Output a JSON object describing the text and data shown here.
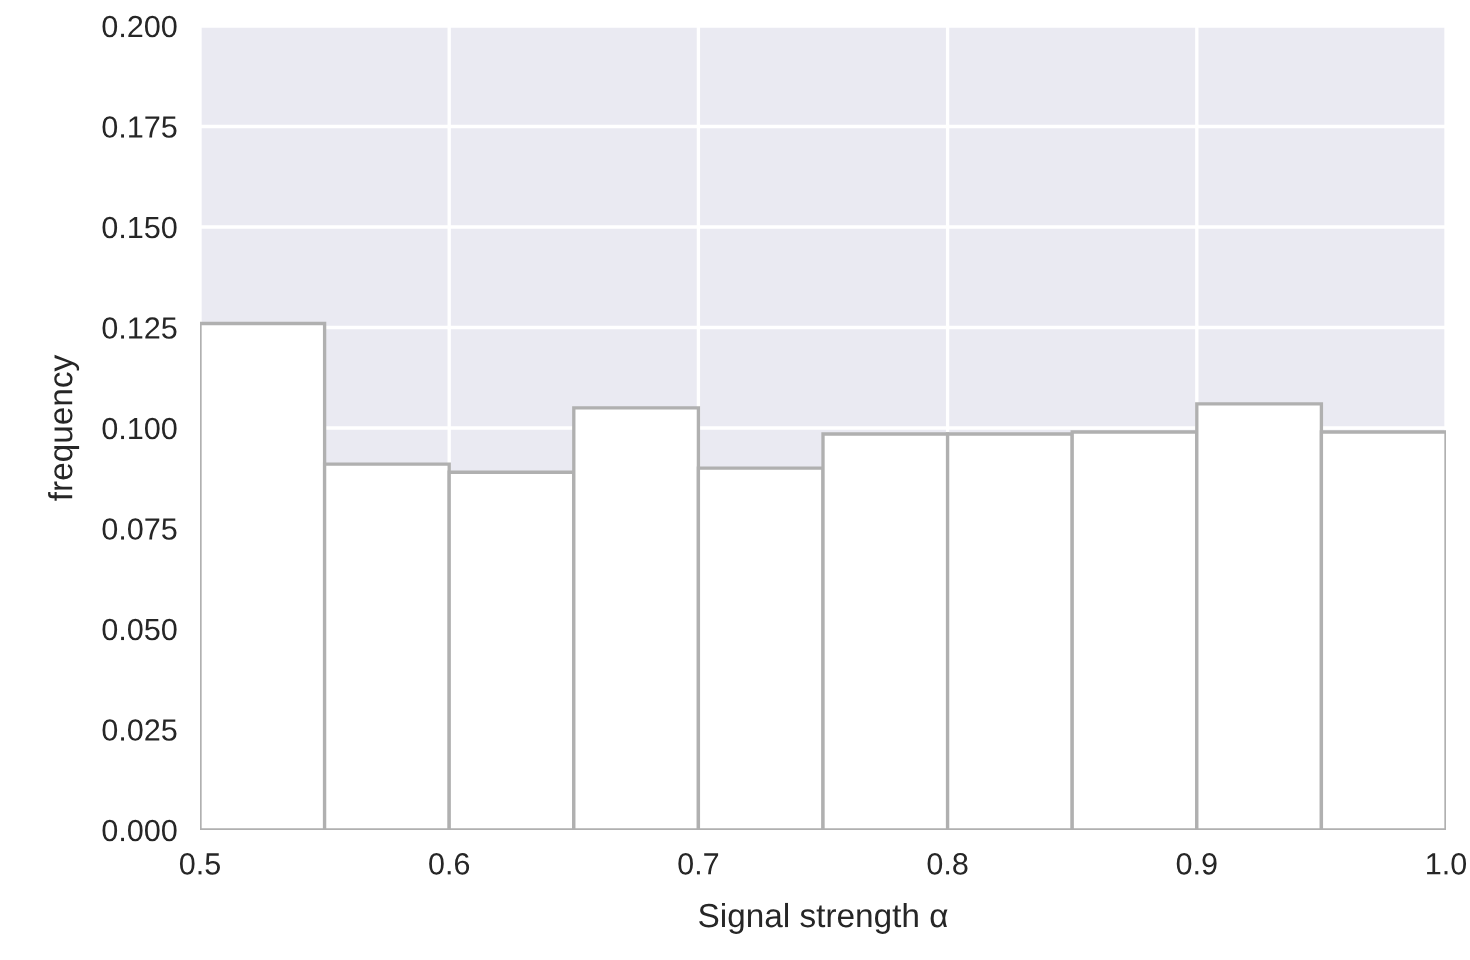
{
  "chart_data": {
    "type": "histogram",
    "xlabel": "Signal strength α",
    "ylabel": "frequency",
    "bins": [
      0.5,
      0.55,
      0.6,
      0.65,
      0.7,
      0.75,
      0.8,
      0.85,
      0.9,
      0.95,
      1.0
    ],
    "values": [
      0.126,
      0.091,
      0.089,
      0.105,
      0.09,
      0.0985,
      0.0985,
      0.099,
      0.106,
      0.099
    ],
    "color": "#ffffff",
    "xlim": [
      0.5,
      1.0
    ],
    "xticks": [
      0.5,
      0.6,
      0.7,
      0.8,
      0.9,
      {
        "value": 1.0,
        "label": "1.0"
      }
    ],
    "ylim": [
      0,
      0.2
    ],
    "yticks": [
      {
        "value": 0,
        "label": "0.000"
      },
      {
        "value": 0.025,
        "label": "0.025"
      },
      {
        "value": 0.05,
        "label": "0.050"
      },
      {
        "value": 0.075,
        "label": "0.075"
      },
      {
        "value": 0.1,
        "label": "0.100"
      },
      {
        "value": 0.125,
        "label": "0.125"
      },
      {
        "value": 0.15,
        "label": "0.150"
      },
      {
        "value": 0.175,
        "label": "0.175"
      },
      {
        "value": 0.2,
        "label": "0.200"
      }
    ],
    "grid": true
  }
}
